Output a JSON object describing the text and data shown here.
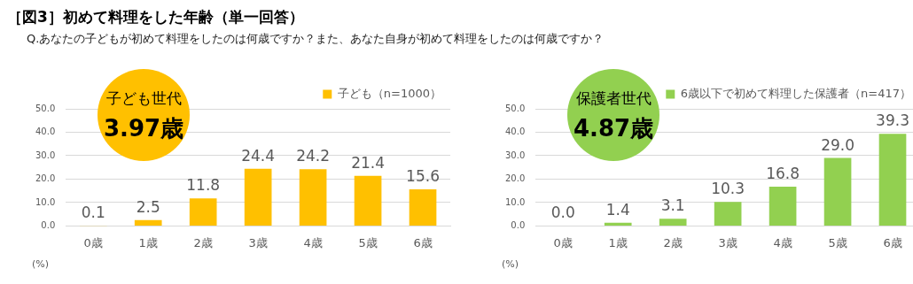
{
  "chart_data": [
    {
      "type": "bar",
      "title": "［図3］初めて料理をした年齢（単一回答）",
      "subtitle": "Q.あなたの子どもが初めて料理をしたのは何歳ですか？また、あなた自身が初めて料理をしたのは何歳ですか？",
      "ylabel": "(%)",
      "categories": [
        "0歳",
        "1歳",
        "2歳",
        "3歳",
        "4歳",
        "5歳",
        "6歳"
      ],
      "series": [
        {
          "name": "子ども（n=1000）",
          "color": "#ffc000",
          "values": [
            0.1,
            2.5,
            11.8,
            24.4,
            24.2,
            21.4,
            15.6
          ],
          "value_labels": [
            "0.1",
            "2.5",
            "11.8",
            "24.4",
            "24.2",
            "21.4",
            "15.6"
          ]
        }
      ],
      "ylim": [
        0,
        50
      ],
      "yticks": [
        {
          "value": 0,
          "label": "0.0"
        },
        {
          "value": 10,
          "label": "10.0"
        },
        {
          "value": 20,
          "label": "20.0"
        },
        {
          "value": 30,
          "label": "30.0"
        },
        {
          "value": 40,
          "label": "40.0"
        },
        {
          "value": 50,
          "label": "50.0"
        }
      ],
      "grid": "y",
      "legend": "top right",
      "annotations": [
        "子ども世代",
        "3.97歳"
      ]
    },
    {
      "type": "bar",
      "ylabel": "(%)",
      "categories": [
        "0歳",
        "1歳",
        "2歳",
        "3歳",
        "4歳",
        "5歳",
        "6歳"
      ],
      "series": [
        {
          "name": "6歳以下で初めて料理した保護者（n=417）",
          "color": "#92d050",
          "values": [
            0.0,
            1.4,
            3.1,
            10.3,
            16.8,
            29.0,
            39.3
          ],
          "value_labels": [
            "0.0",
            "1.4",
            "3.1",
            "10.3",
            "16.8",
            "29.0",
            "39.3"
          ]
        }
      ],
      "ylim": [
        0,
        50
      ],
      "yticks": [
        {
          "value": 0,
          "label": "0.0"
        },
        {
          "value": 10,
          "label": "10.0"
        },
        {
          "value": 20,
          "label": "20.0"
        },
        {
          "value": 30,
          "label": "30.0"
        },
        {
          "value": 40,
          "label": "40.0"
        },
        {
          "value": 50,
          "label": "50.0"
        }
      ],
      "grid": "y",
      "legend": "top right",
      "annotations": [
        "保護者世代",
        "4.87歳"
      ]
    }
  ]
}
